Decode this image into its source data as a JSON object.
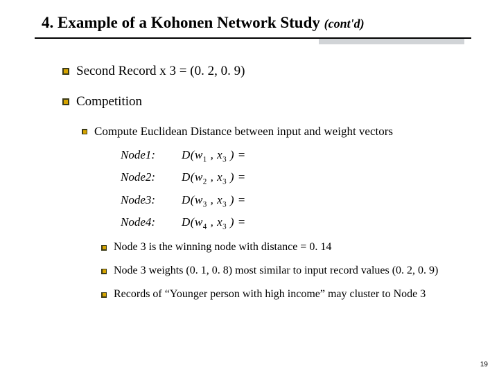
{
  "title": {
    "main": "4. Example of a Kohonen Network Study ",
    "contd": "(cont'd)"
  },
  "bullets": {
    "b1": "Second Record x 3 = (0. 2, 0. 9)",
    "b2": "Competition",
    "b2_1": "Compute Euclidean Distance between input and weight vectors",
    "b2_2": "Node 3 is the winning node with distance = 0. 14",
    "b2_3": "Node 3 weights (0. 1, 0. 8) most similar to input record values (0. 2, 0. 9)",
    "b2_4": "Records of “Younger person with high income” may cluster to Node 3"
  },
  "equations": [
    {
      "node": "Node1:",
      "w": "1",
      "x": "3"
    },
    {
      "node": "Node2:",
      "w": "2",
      "x": "3"
    },
    {
      "node": "Node3:",
      "w": "3",
      "x": "3"
    },
    {
      "node": "Node4:",
      "w": "4",
      "x": "3"
    }
  ],
  "page_num": "19"
}
